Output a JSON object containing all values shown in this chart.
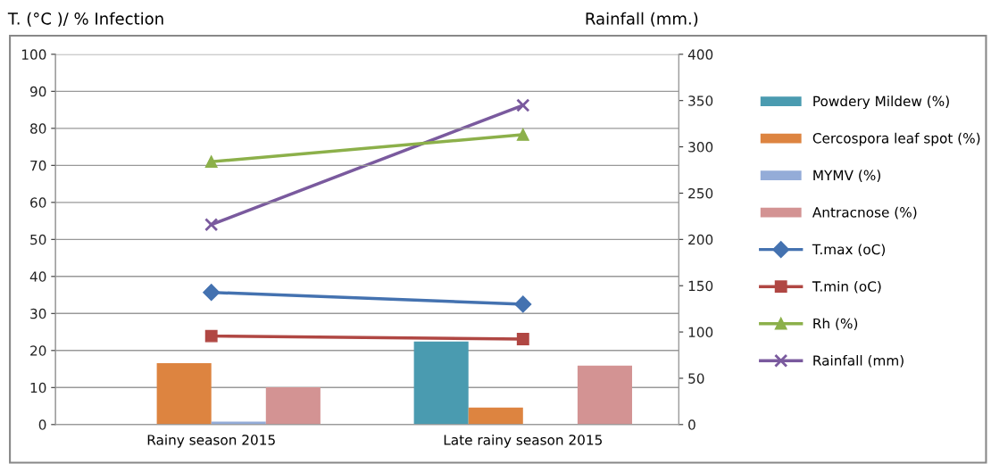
{
  "chart_data": {
    "type": "bar",
    "ylabel": "T. (°C )/ % Infection",
    "y2label": "Rainfall (mm.)",
    "categories": [
      "Rainy season 2015",
      "Late rainy season 2015"
    ],
    "series": [
      {
        "name": "Powdery Mildew (%)",
        "color": "#4a9bb0",
        "values": [
          0,
          22.4
        ]
      },
      {
        "name": "Cercospora leaf spot (%)",
        "color": "#dd8440",
        "values": [
          16.6,
          4.6
        ]
      },
      {
        "name": "MYMV (%)",
        "color": "#94acd8",
        "values": [
          0.8,
          0
        ]
      },
      {
        "name": "Antracnose (%)",
        "color": "#d39393",
        "values": [
          10.1,
          15.9
        ]
      },
      {
        "name": "T.max (oC)",
        "type": "line",
        "marker": "diamond",
        "color": "#4472b0",
        "values": [
          35.7,
          32.5
        ]
      },
      {
        "name": "T.min (oC)",
        "type": "line",
        "marker": "square",
        "color": "#b04743",
        "values": [
          23.9,
          23.1
        ]
      },
      {
        "name": "Rh (%)",
        "type": "line",
        "marker": "triangle",
        "color": "#8cb04a",
        "values": [
          71,
          78.3
        ]
      },
      {
        "name": "Rainfall (mm)",
        "type": "line",
        "marker": "cross",
        "color": "#7a5a9e",
        "axis": "y2",
        "values": [
          216,
          345
        ]
      }
    ],
    "ylim": [
      0,
      100
    ],
    "yticks": [
      0,
      10,
      20,
      30,
      40,
      50,
      60,
      70,
      80,
      90,
      100
    ],
    "y2lim": [
      0,
      400
    ],
    "y2ticks": [
      0,
      50,
      100,
      150,
      200,
      250,
      300,
      350,
      400
    ],
    "grid": "y",
    "legend": "right"
  }
}
